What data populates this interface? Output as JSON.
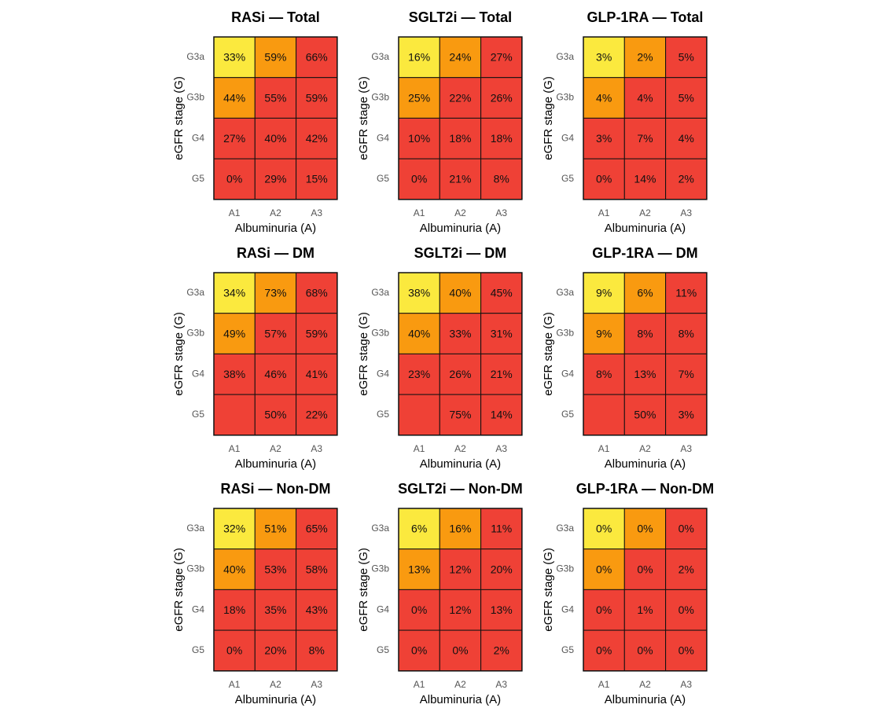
{
  "chart_data": [
    {
      "type": "heatmap",
      "title": "RASi — Total",
      "x_label": "Albuminuria (A)",
      "y_label": "eGFR stage (G)",
      "x_categories": [
        "A1",
        "A2",
        "A3"
      ],
      "y_categories": [
        "G3a",
        "G3b",
        "G4",
        "G5"
      ],
      "values": [
        [
          33,
          59,
          66
        ],
        [
          44,
          55,
          59
        ],
        [
          27,
          40,
          42
        ],
        [
          0,
          29,
          15
        ]
      ],
      "value_labels": [
        [
          "33%",
          "59%",
          "66%"
        ],
        [
          "44%",
          "55%",
          "59%"
        ],
        [
          "27%",
          "40%",
          "42%"
        ],
        [
          "0%",
          "29%",
          "15%"
        ]
      ],
      "colors": [
        [
          "#fbe93e",
          "#f99a10",
          "#ef4136"
        ],
        [
          "#f99a10",
          "#ef4136",
          "#ef4136"
        ],
        [
          "#ef4136",
          "#ef4136",
          "#ef4136"
        ],
        [
          "#ef4136",
          "#ef4136",
          "#ef4136"
        ]
      ]
    },
    {
      "type": "heatmap",
      "title": "SGLT2i — Total",
      "x_label": "Albuminuria (A)",
      "y_label": "eGFR stage (G)",
      "x_categories": [
        "A1",
        "A2",
        "A3"
      ],
      "y_categories": [
        "G3a",
        "G3b",
        "G4",
        "G5"
      ],
      "values": [
        [
          16,
          24,
          27
        ],
        [
          25,
          22,
          26
        ],
        [
          10,
          18,
          18
        ],
        [
          0,
          21,
          8
        ]
      ],
      "value_labels": [
        [
          "16%",
          "24%",
          "27%"
        ],
        [
          "25%",
          "22%",
          "26%"
        ],
        [
          "10%",
          "18%",
          "18%"
        ],
        [
          "0%",
          "21%",
          "8%"
        ]
      ],
      "colors": [
        [
          "#fbe93e",
          "#f99a10",
          "#ef4136"
        ],
        [
          "#f99a10",
          "#ef4136",
          "#ef4136"
        ],
        [
          "#ef4136",
          "#ef4136",
          "#ef4136"
        ],
        [
          "#ef4136",
          "#ef4136",
          "#ef4136"
        ]
      ]
    },
    {
      "type": "heatmap",
      "title": "GLP-1RA — Total",
      "x_label": "Albuminuria (A)",
      "y_label": "eGFR stage (G)",
      "x_categories": [
        "A1",
        "A2",
        "A3"
      ],
      "y_categories": [
        "G3a",
        "G3b",
        "G4",
        "G5"
      ],
      "values": [
        [
          3,
          2,
          5
        ],
        [
          4,
          4,
          5
        ],
        [
          3,
          7,
          4
        ],
        [
          0,
          14,
          2
        ]
      ],
      "value_labels": [
        [
          "3%",
          "2%",
          "5%"
        ],
        [
          "4%",
          "4%",
          "5%"
        ],
        [
          "3%",
          "7%",
          "4%"
        ],
        [
          "0%",
          "14%",
          "2%"
        ]
      ],
      "colors": [
        [
          "#fbe93e",
          "#f99a10",
          "#ef4136"
        ],
        [
          "#f99a10",
          "#ef4136",
          "#ef4136"
        ],
        [
          "#ef4136",
          "#ef4136",
          "#ef4136"
        ],
        [
          "#ef4136",
          "#ef4136",
          "#ef4136"
        ]
      ]
    },
    {
      "type": "heatmap",
      "title": "RASi — DM",
      "x_label": "Albuminuria (A)",
      "y_label": "eGFR stage (G)",
      "x_categories": [
        "A1",
        "A2",
        "A3"
      ],
      "y_categories": [
        "G3a",
        "G3b",
        "G4",
        "G5"
      ],
      "values": [
        [
          34,
          73,
          68
        ],
        [
          49,
          57,
          59
        ],
        [
          38,
          46,
          41
        ],
        [
          null,
          50,
          22
        ]
      ],
      "value_labels": [
        [
          "34%",
          "73%",
          "68%"
        ],
        [
          "49%",
          "57%",
          "59%"
        ],
        [
          "38%",
          "46%",
          "41%"
        ],
        [
          null,
          "50%",
          "22%"
        ]
      ],
      "colors": [
        [
          "#fbe93e",
          "#f99a10",
          "#ef4136"
        ],
        [
          "#f99a10",
          "#ef4136",
          "#ef4136"
        ],
        [
          "#ef4136",
          "#ef4136",
          "#ef4136"
        ],
        [
          "#ef4136",
          "#ef4136",
          "#ef4136"
        ]
      ]
    },
    {
      "type": "heatmap",
      "title": "SGLT2i — DM",
      "x_label": "Albuminuria (A)",
      "y_label": "eGFR stage (G)",
      "x_categories": [
        "A1",
        "A2",
        "A3"
      ],
      "y_categories": [
        "G3a",
        "G3b",
        "G4",
        "G5"
      ],
      "values": [
        [
          38,
          40,
          45
        ],
        [
          40,
          33,
          31
        ],
        [
          23,
          26,
          21
        ],
        [
          null,
          75,
          14
        ]
      ],
      "value_labels": [
        [
          "38%",
          "40%",
          "45%"
        ],
        [
          "40%",
          "33%",
          "31%"
        ],
        [
          "23%",
          "26%",
          "21%"
        ],
        [
          null,
          "75%",
          "14%"
        ]
      ],
      "colors": [
        [
          "#fbe93e",
          "#f99a10",
          "#ef4136"
        ],
        [
          "#f99a10",
          "#ef4136",
          "#ef4136"
        ],
        [
          "#ef4136",
          "#ef4136",
          "#ef4136"
        ],
        [
          "#ef4136",
          "#ef4136",
          "#ef4136"
        ]
      ]
    },
    {
      "type": "heatmap",
      "title": "GLP-1RA — DM",
      "x_label": "Albuminuria (A)",
      "y_label": "eGFR stage (G)",
      "x_categories": [
        "A1",
        "A2",
        "A3"
      ],
      "y_categories": [
        "G3a",
        "G3b",
        "G4",
        "G5"
      ],
      "values": [
        [
          9,
          6,
          11
        ],
        [
          9,
          8,
          8
        ],
        [
          8,
          13,
          7
        ],
        [
          null,
          50,
          3
        ]
      ],
      "value_labels": [
        [
          "9%",
          "6%",
          "11%"
        ],
        [
          "9%",
          "8%",
          "8%"
        ],
        [
          "8%",
          "13%",
          "7%"
        ],
        [
          null,
          "50%",
          "3%"
        ]
      ],
      "colors": [
        [
          "#fbe93e",
          "#f99a10",
          "#ef4136"
        ],
        [
          "#f99a10",
          "#ef4136",
          "#ef4136"
        ],
        [
          "#ef4136",
          "#ef4136",
          "#ef4136"
        ],
        [
          "#ef4136",
          "#ef4136",
          "#ef4136"
        ]
      ]
    },
    {
      "type": "heatmap",
      "title": "RASi — Non-DM",
      "x_label": "Albuminuria (A)",
      "y_label": "eGFR stage (G)",
      "x_categories": [
        "A1",
        "A2",
        "A3"
      ],
      "y_categories": [
        "G3a",
        "G3b",
        "G4",
        "G5"
      ],
      "values": [
        [
          32,
          51,
          65
        ],
        [
          40,
          53,
          58
        ],
        [
          18,
          35,
          43
        ],
        [
          0,
          20,
          8
        ]
      ],
      "value_labels": [
        [
          "32%",
          "51%",
          "65%"
        ],
        [
          "40%",
          "53%",
          "58%"
        ],
        [
          "18%",
          "35%",
          "43%"
        ],
        [
          "0%",
          "20%",
          "8%"
        ]
      ],
      "colors": [
        [
          "#fbe93e",
          "#f99a10",
          "#ef4136"
        ],
        [
          "#f99a10",
          "#ef4136",
          "#ef4136"
        ],
        [
          "#ef4136",
          "#ef4136",
          "#ef4136"
        ],
        [
          "#ef4136",
          "#ef4136",
          "#ef4136"
        ]
      ]
    },
    {
      "type": "heatmap",
      "title": "SGLT2i — Non-DM",
      "x_label": "Albuminuria (A)",
      "y_label": "eGFR stage (G)",
      "x_categories": [
        "A1",
        "A2",
        "A3"
      ],
      "y_categories": [
        "G3a",
        "G3b",
        "G4",
        "G5"
      ],
      "values": [
        [
          6,
          16,
          11
        ],
        [
          13,
          12,
          20
        ],
        [
          0,
          12,
          13
        ],
        [
          0,
          0,
          2
        ]
      ],
      "value_labels": [
        [
          "6%",
          "16%",
          "11%"
        ],
        [
          "13%",
          "12%",
          "20%"
        ],
        [
          "0%",
          "12%",
          "13%"
        ],
        [
          "0%",
          "0%",
          "2%"
        ]
      ],
      "colors": [
        [
          "#fbe93e",
          "#f99a10",
          "#ef4136"
        ],
        [
          "#f99a10",
          "#ef4136",
          "#ef4136"
        ],
        [
          "#ef4136",
          "#ef4136",
          "#ef4136"
        ],
        [
          "#ef4136",
          "#ef4136",
          "#ef4136"
        ]
      ]
    },
    {
      "type": "heatmap",
      "title": "GLP-1RA — Non-DM",
      "x_label": "Albuminuria (A)",
      "y_label": "eGFR stage (G)",
      "x_categories": [
        "A1",
        "A2",
        "A3"
      ],
      "y_categories": [
        "G3a",
        "G3b",
        "G4",
        "G5"
      ],
      "values": [
        [
          0,
          0,
          0
        ],
        [
          0,
          0,
          2
        ],
        [
          0,
          1,
          0
        ],
        [
          0,
          0,
          0
        ]
      ],
      "value_labels": [
        [
          "0%",
          "0%",
          "0%"
        ],
        [
          "0%",
          "0%",
          "2%"
        ],
        [
          "0%",
          "1%",
          "0%"
        ],
        [
          "0%",
          "0%",
          "0%"
        ]
      ],
      "colors": [
        [
          "#fbe93e",
          "#f99a10",
          "#ef4136"
        ],
        [
          "#f99a10",
          "#ef4136",
          "#ef4136"
        ],
        [
          "#ef4136",
          "#ef4136",
          "#ef4136"
        ],
        [
          "#ef4136",
          "#ef4136",
          "#ef4136"
        ]
      ]
    }
  ]
}
